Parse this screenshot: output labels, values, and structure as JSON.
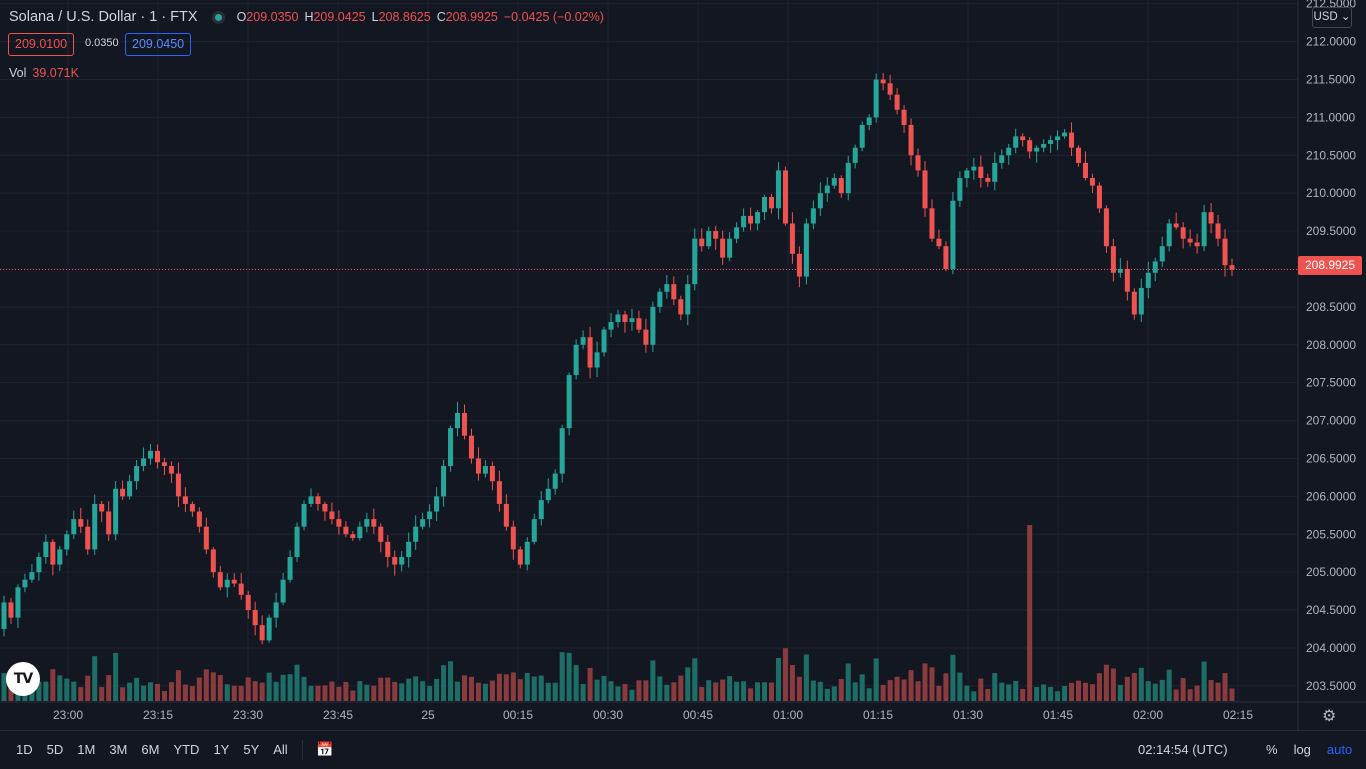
{
  "header": {
    "title": "Solana / U.S. Dollar · 1 · FTX",
    "ohlc": {
      "o_label": "O",
      "o": "209.0350",
      "h_label": "H",
      "h": "209.0425",
      "l_label": "L",
      "l": "208.8625",
      "c_label": "C",
      "c": "208.9925",
      "change": "−0.0425 (−0.02%)"
    },
    "bid": "209.0100",
    "spread": "0.0350",
    "ask": "209.0450",
    "vol_label": "Vol",
    "vol_value": "39.071K",
    "currency": "USD",
    "currency_icon": "chevron-down-icon"
  },
  "colors": {
    "up": "#26a69a",
    "down": "#ef5350",
    "up_vol": "#1e6e68",
    "down_vol": "#8a3b3d",
    "grid": "#1f2330",
    "bg": "#131722",
    "accent": "#2962ff"
  },
  "last_price_label": "208.9925",
  "bottom_bar": {
    "ranges": [
      "1D",
      "5D",
      "1M",
      "3M",
      "6M",
      "YTD",
      "1Y",
      "5Y",
      "All"
    ],
    "calendar_icon": "calendar-icon",
    "time": "02:14:54 (UTC)",
    "percent": "%",
    "log": "log",
    "auto": "auto",
    "settings_icon": "gear-icon"
  },
  "chart_data": {
    "type": "candlestick",
    "symbol": "Solana / U.S. Dollar",
    "interval": "1",
    "exchange": "FTX",
    "ylim": [
      203.3,
      212.5
    ],
    "y_ticks": [
      "212.5000",
      "212.0000",
      "211.5000",
      "211.0000",
      "210.5000",
      "210.0000",
      "209.5000",
      "209.0000",
      "208.5000",
      "208.0000",
      "207.5000",
      "207.0000",
      "206.5000",
      "206.0000",
      "205.5000",
      "205.0000",
      "204.5000",
      "204.0000",
      "203.5000"
    ],
    "y_tick_values": [
      212.5,
      212.0,
      211.5,
      211.0,
      210.5,
      210.0,
      209.5,
      209.0,
      208.5,
      208.0,
      207.5,
      207.0,
      206.5,
      206.0,
      205.5,
      205.0,
      204.5,
      204.0,
      203.5
    ],
    "x_ticks": [
      "23:00",
      "23:15",
      "23:30",
      "23:45",
      "25",
      "00:15",
      "00:30",
      "00:45",
      "01:00",
      "01:15",
      "01:30",
      "01:45",
      "02:00",
      "02:15"
    ],
    "last_price": 208.9925,
    "closes": [
      204.6,
      204.4,
      204.8,
      204.9,
      205.0,
      205.2,
      205.4,
      205.1,
      205.3,
      205.5,
      205.7,
      205.6,
      205.3,
      205.9,
      205.8,
      205.5,
      206.1,
      206.0,
      206.2,
      206.4,
      206.5,
      206.6,
      206.45,
      206.4,
      206.3,
      206.0,
      205.9,
      205.8,
      205.6,
      205.3,
      205.0,
      204.8,
      204.9,
      204.85,
      204.7,
      204.5,
      204.3,
      204.1,
      204.4,
      204.6,
      204.9,
      205.2,
      205.6,
      205.9,
      206.0,
      205.9,
      205.8,
      205.7,
      205.6,
      205.5,
      205.45,
      205.6,
      205.7,
      205.6,
      205.4,
      205.2,
      205.1,
      205.2,
      205.4,
      205.6,
      205.7,
      205.8,
      206.0,
      206.4,
      206.9,
      207.1,
      206.8,
      206.5,
      206.3,
      206.4,
      206.2,
      205.9,
      205.6,
      205.3,
      205.1,
      205.4,
      205.7,
      205.95,
      206.1,
      206.3,
      206.9,
      207.6,
      208.0,
      208.1,
      207.7,
      207.9,
      208.2,
      208.3,
      208.4,
      208.3,
      208.35,
      208.2,
      208.0,
      208.5,
      208.7,
      208.8,
      208.6,
      208.4,
      208.8,
      209.4,
      209.3,
      209.5,
      209.4,
      209.15,
      209.4,
      209.55,
      209.7,
      209.6,
      209.75,
      209.95,
      209.8,
      210.3,
      209.6,
      209.2,
      208.9,
      209.6,
      209.8,
      210.0,
      210.1,
      210.2,
      210.0,
      210.4,
      210.6,
      210.9,
      211.0,
      211.5,
      211.45,
      211.3,
      211.1,
      210.9,
      210.5,
      210.3,
      209.8,
      209.4,
      209.3,
      209.0,
      209.9,
      210.2,
      210.3,
      210.35,
      210.2,
      210.15,
      210.4,
      210.5,
      210.6,
      210.75,
      210.7,
      210.55,
      210.6,
      210.65,
      210.7,
      210.75,
      210.8,
      210.6,
      210.4,
      210.2,
      210.1,
      209.8,
      209.3,
      208.95,
      209.0,
      208.7,
      208.4,
      208.75,
      208.95,
      209.1,
      209.3,
      209.6,
      209.55,
      209.4,
      209.35,
      209.3,
      209.75,
      209.6,
      209.4,
      209.05,
      208.99
    ]
  }
}
